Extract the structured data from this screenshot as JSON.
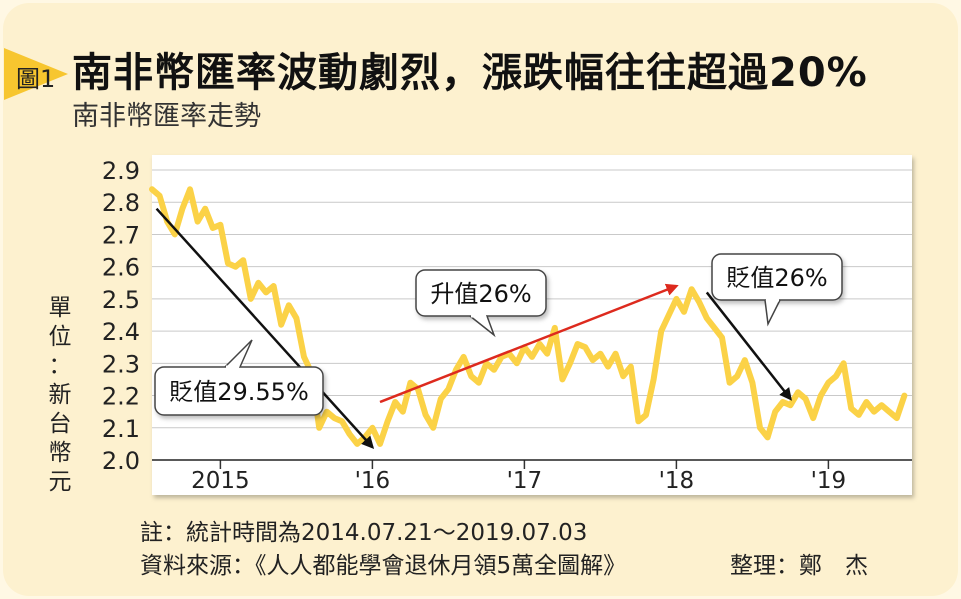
{
  "figure": {
    "label": "圖1",
    "title": "南非幣匯率波動劇烈，漲跌幅往往超過20%",
    "subtitle": "南非幣匯率走勢",
    "ylabel_chars": [
      "單",
      "位",
      "：",
      "新",
      "台",
      "幣",
      "元"
    ],
    "note": "註：統計時間為2014.07.21～2019.07.03",
    "source": "資料來源：《人人都能學會退休月領5萬全圖解》",
    "editor": "整理：鄭　杰"
  },
  "colors": {
    "background": "#fdf1cf",
    "accent": "#f7c62f",
    "line": "#fbd247",
    "arrow_up": "#dd2a1e",
    "arrow_down": "#111111"
  },
  "chart_data": {
    "type": "line",
    "ylim": [
      2.0,
      2.9
    ],
    "yticks": [
      "2.9",
      "2.8",
      "2.7",
      "2.6",
      "2.5",
      "2.4",
      "2.3",
      "2.2",
      "2.1",
      "2.0"
    ],
    "xlim": [
      2014.55,
      2019.55
    ],
    "xticks": [
      {
        "label": "2015",
        "x": 2015.0
      },
      {
        "label": "'16",
        "x": 2016.0
      },
      {
        "label": "'17",
        "x": 2017.0
      },
      {
        "label": "'18",
        "x": 2018.0
      },
      {
        "label": "'19",
        "x": 2019.0
      }
    ],
    "grid": true,
    "series": [
      {
        "x": [
          2014.55,
          2014.6,
          2014.65,
          2014.7,
          2014.75,
          2014.8,
          2014.85,
          2014.9,
          2014.95,
          2015.0,
          2015.05,
          2015.1,
          2015.15,
          2015.2,
          2015.25,
          2015.3,
          2015.35,
          2015.4,
          2015.45,
          2015.5,
          2015.55,
          2015.6,
          2015.65,
          2015.7,
          2015.75,
          2015.8,
          2015.85,
          2015.9,
          2015.95,
          2016.0,
          2016.05,
          2016.1,
          2016.15,
          2016.2,
          2016.25,
          2016.3,
          2016.35,
          2016.4,
          2016.45,
          2016.5,
          2016.55,
          2016.6,
          2016.65,
          2016.7,
          2016.75,
          2016.8,
          2016.85,
          2016.9,
          2016.95,
          2017.0,
          2017.05,
          2017.1,
          2017.15,
          2017.2,
          2017.25,
          2017.3,
          2017.35,
          2017.4,
          2017.45,
          2017.5,
          2017.55,
          2017.6,
          2017.65,
          2017.7,
          2017.75,
          2017.8,
          2017.85,
          2017.9,
          2017.95,
          2018.0,
          2018.05,
          2018.1,
          2018.15,
          2018.2,
          2018.25,
          2018.3,
          2018.35,
          2018.4,
          2018.45,
          2018.5,
          2018.55,
          2018.6,
          2018.65,
          2018.7,
          2018.75,
          2018.8,
          2018.85,
          2018.9,
          2018.95,
          2019.0,
          2019.05,
          2019.1,
          2019.15,
          2019.2,
          2019.25,
          2019.3,
          2019.35,
          2019.4,
          2019.45,
          2019.5
        ],
        "y": [
          2.84,
          2.82,
          2.74,
          2.7,
          2.78,
          2.84,
          2.74,
          2.78,
          2.72,
          2.73,
          2.61,
          2.6,
          2.62,
          2.5,
          2.55,
          2.52,
          2.54,
          2.42,
          2.48,
          2.44,
          2.32,
          2.27,
          2.1,
          2.15,
          2.13,
          2.12,
          2.08,
          2.05,
          2.07,
          2.1,
          2.05,
          2.12,
          2.18,
          2.15,
          2.24,
          2.22,
          2.14,
          2.1,
          2.19,
          2.22,
          2.28,
          2.32,
          2.26,
          2.24,
          2.3,
          2.28,
          2.32,
          2.33,
          2.3,
          2.35,
          2.32,
          2.36,
          2.33,
          2.41,
          2.25,
          2.3,
          2.36,
          2.35,
          2.31,
          2.33,
          2.29,
          2.33,
          2.26,
          2.29,
          2.12,
          2.14,
          2.25,
          2.4,
          2.45,
          2.5,
          2.46,
          2.53,
          2.49,
          2.44,
          2.41,
          2.38,
          2.24,
          2.26,
          2.31,
          2.24,
          2.1,
          2.07,
          2.15,
          2.18,
          2.17,
          2.21,
          2.19,
          2.13,
          2.2,
          2.24,
          2.26,
          2.3,
          2.16,
          2.14,
          2.18,
          2.15,
          2.17,
          2.15,
          2.13,
          2.2
        ]
      }
    ],
    "annotations": [
      {
        "text": "貶值29.55%",
        "direction": "down",
        "from": [
          2014.58,
          2.78
        ],
        "to": [
          2016.0,
          2.04
        ]
      },
      {
        "text": "升值26%",
        "direction": "up",
        "from": [
          2016.05,
          2.18
        ],
        "to": [
          2018.0,
          2.54
        ]
      },
      {
        "text": "貶值26%",
        "direction": "down",
        "from": [
          2018.2,
          2.52
        ],
        "to": [
          2018.75,
          2.19
        ]
      }
    ]
  }
}
